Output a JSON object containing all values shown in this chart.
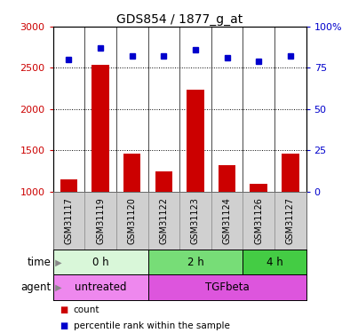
{
  "title": "GDS854 / 1877_g_at",
  "samples": [
    "GSM31117",
    "GSM31119",
    "GSM31120",
    "GSM31122",
    "GSM31123",
    "GSM31124",
    "GSM31126",
    "GSM31127"
  ],
  "counts": [
    1150,
    2540,
    1460,
    1240,
    2230,
    1320,
    1090,
    1460
  ],
  "percentile_ranks": [
    80,
    87,
    82,
    82,
    86,
    81,
    79,
    82
  ],
  "bar_color": "#cc0000",
  "dot_color": "#0000cc",
  "ylim_left": [
    1000,
    3000
  ],
  "ylim_right": [
    0,
    100
  ],
  "yticks_left": [
    1000,
    1500,
    2000,
    2500,
    3000
  ],
  "yticks_right": [
    0,
    25,
    50,
    75,
    100
  ],
  "ytick_labels_right": [
    "0",
    "25",
    "50",
    "75",
    "100%"
  ],
  "time_groups": [
    {
      "label": "0 h",
      "start": 0,
      "end": 3,
      "color": "#d9f7d9"
    },
    {
      "label": "2 h",
      "start": 3,
      "end": 6,
      "color": "#77dd77"
    },
    {
      "label": "4 h",
      "start": 6,
      "end": 8,
      "color": "#44cc44"
    }
  ],
  "agent_groups": [
    {
      "label": "untreated",
      "start": 0,
      "end": 3,
      "color": "#ee88ee"
    },
    {
      "label": "TGFbeta",
      "start": 3,
      "end": 8,
      "color": "#dd55dd"
    }
  ],
  "time_row_label": "time",
  "agent_row_label": "agent",
  "legend_count_label": "count",
  "legend_pct_label": "percentile rank within the sample",
  "bg_color": "#ffffff",
  "sample_bg_color": "#d0d0d0",
  "sample_border_color": "#999999"
}
